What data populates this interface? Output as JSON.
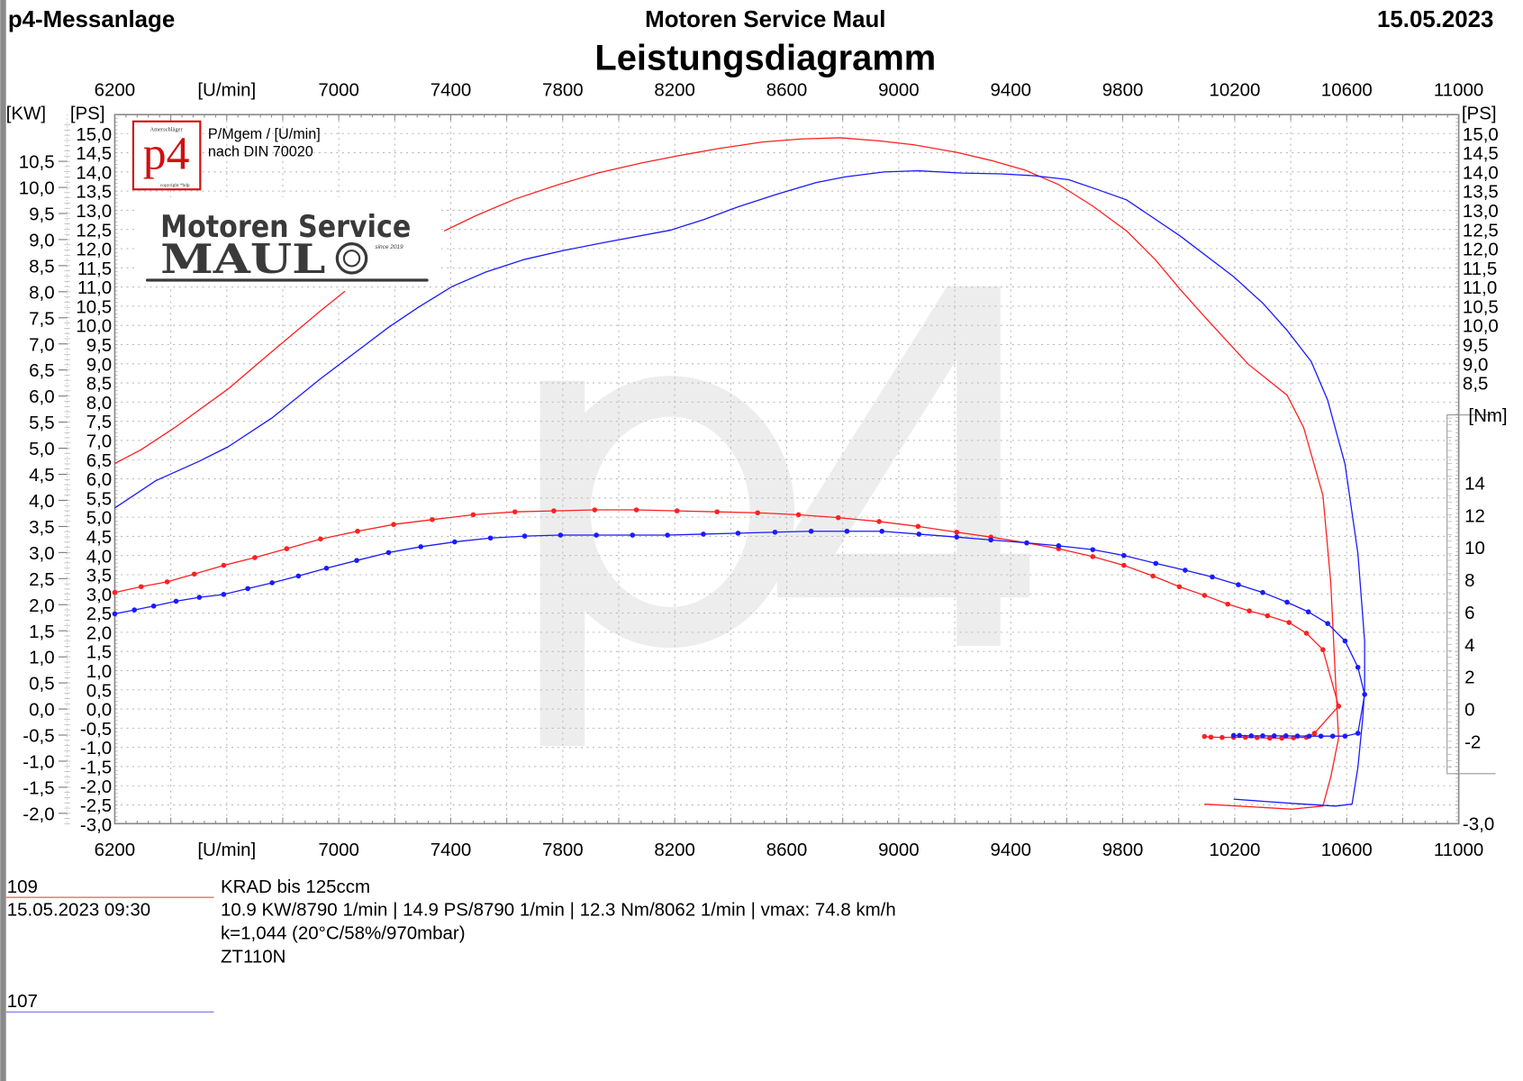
{
  "header": {
    "left": "p4-Messanlage",
    "center": "Motoren Service Maul",
    "date": "15.05.2023",
    "title": "Leistungsdiagramm"
  },
  "logo": {
    "p4_mark": "p4",
    "p4_top": "Amerschläger",
    "p4_bottom": "copyright *hdp",
    "desc_line1": "P/Mgem / [U/min]",
    "desc_line2": "nach DIN 70020",
    "company_line1": "Motoren Service",
    "company_line2": "MAUL",
    "since": "since 2019",
    "watermark": "p4"
  },
  "chart_data": {
    "type": "line",
    "title": "Leistungsdiagramm",
    "xlabel": "[U/min]",
    "y_left_outer_label": "[KW]",
    "y_left_label": "[PS]",
    "y_right_label": "[PS]",
    "y_right_torque_label": "[Nm]",
    "xlim": [
      6200,
      11000
    ],
    "ylim_ps": [
      -3.0,
      15.5
    ],
    "ylim_kw": [
      -2.2,
      11.4
    ],
    "ylim_nm_axis": [
      -4,
      18
    ],
    "grid": true,
    "x_ticks": [
      "6200",
      "[U/min]",
      "7000",
      "7400",
      "7800",
      "8200",
      "8600",
      "9000",
      "9400",
      "9800",
      "10200",
      "10600",
      "11000"
    ],
    "x_tick_values": [
      6200,
      6600,
      7000,
      7400,
      7800,
      8200,
      8600,
      9000,
      9400,
      9800,
      10200,
      10600,
      11000
    ],
    "kw_ticks": [
      "10,5",
      "10,0",
      "9,5",
      "9,0",
      "8,5",
      "8,0",
      "7,5",
      "7,0",
      "6,5",
      "6,0",
      "5,5",
      "5,0",
      "4,5",
      "4,0",
      "3,5",
      "3,0",
      "2,5",
      "2,0",
      "1,5",
      "1,0",
      "0,5",
      "0,0",
      "-0,5",
      "-1,0",
      "-1,5",
      "-2,0"
    ],
    "ps_ticks": [
      "15,0",
      "14,5",
      "14,0",
      "13,5",
      "13,0",
      "12,5",
      "12,0",
      "11,5",
      "11,0",
      "10,5",
      "10,0",
      "9,5",
      "9,0",
      "8,5",
      "8,0",
      "7,5",
      "7,0",
      "6,5",
      "6,0",
      "5,5",
      "5,0",
      "4,5",
      "4,0",
      "3,5",
      "3,0",
      "2,5",
      "2,0",
      "1,5",
      "1,0",
      "0,5",
      "0,0",
      "-0,5",
      "-1,0",
      "-1,5",
      "-2,0",
      "-2,5",
      "-3,0"
    ],
    "ps_right_ticks": [
      "15,0",
      "14,5",
      "14,0",
      "13,5",
      "13,0",
      "12,5",
      "12,0",
      "11,5",
      "11,0",
      "10,5",
      "10,0",
      "9,5",
      "9,0",
      "8,5"
    ],
    "ps_right_bottom_tick": "-3,0",
    "nm_ticks": [
      "14",
      "12",
      "10",
      "8",
      "6",
      "4",
      "2",
      "0",
      "-2"
    ],
    "runs": [
      {
        "id": "109",
        "color": "#ff2020",
        "legend_color": "#f08080",
        "power_ps": [
          [
            6200,
            6.4
          ],
          [
            6294,
            6.76
          ],
          [
            6415,
            7.34
          ],
          [
            6606,
            8.35
          ],
          [
            6762,
            9.32
          ],
          [
            6935,
            10.38
          ],
          [
            7022,
            10.89
          ],
          [
            7376,
            12.46
          ],
          [
            7490,
            12.86
          ],
          [
            7629,
            13.29
          ],
          [
            7785,
            13.67
          ],
          [
            7924,
            13.97
          ],
          [
            8080,
            14.23
          ],
          [
            8219,
            14.43
          ],
          [
            8357,
            14.61
          ],
          [
            8514,
            14.78
          ],
          [
            8652,
            14.86
          ],
          [
            8791,
            14.89
          ],
          [
            8930,
            14.81
          ],
          [
            9051,
            14.71
          ],
          [
            9207,
            14.51
          ],
          [
            9329,
            14.3
          ],
          [
            9450,
            14.05
          ],
          [
            9571,
            13.67
          ],
          [
            9693,
            13.11
          ],
          [
            9814,
            12.46
          ],
          [
            9918,
            11.7
          ],
          [
            10005,
            10.94
          ],
          [
            10092,
            10.23
          ],
          [
            10248,
            8.99
          ],
          [
            10387,
            8.18
          ],
          [
            10446,
            7.34
          ],
          [
            10515,
            5.57
          ],
          [
            10543,
            3.29
          ],
          [
            10560,
            0.76
          ],
          [
            10571,
            -0.76
          ],
          [
            10543,
            -1.77
          ],
          [
            10515,
            -2.53
          ],
          [
            10404,
            -2.61
          ],
          [
            10092,
            -2.48
          ]
        ],
        "power_gap_rpm": [
          7022,
          7376
        ],
        "torque_nm": [
          [
            6200,
            7.21
          ],
          [
            6294,
            7.57
          ],
          [
            6387,
            7.87
          ],
          [
            6484,
            8.35
          ],
          [
            6589,
            8.89
          ],
          [
            6700,
            9.37
          ],
          [
            6814,
            9.92
          ],
          [
            6935,
            10.52
          ],
          [
            7067,
            11.0
          ],
          [
            7196,
            11.42
          ],
          [
            7334,
            11.72
          ],
          [
            7480,
            12.02
          ],
          [
            7629,
            12.2
          ],
          [
            7768,
            12.26
          ],
          [
            7914,
            12.32
          ],
          [
            8063,
            12.32
          ],
          [
            8208,
            12.26
          ],
          [
            8351,
            12.2
          ],
          [
            8496,
            12.14
          ],
          [
            8642,
            12.02
          ],
          [
            8784,
            11.84
          ],
          [
            8930,
            11.6
          ],
          [
            9069,
            11.3
          ],
          [
            9207,
            10.94
          ],
          [
            9329,
            10.64
          ],
          [
            9457,
            10.28
          ],
          [
            9571,
            9.92
          ],
          [
            9693,
            9.43
          ],
          [
            9804,
            8.89
          ],
          [
            9908,
            8.23
          ],
          [
            10002,
            7.57
          ],
          [
            10092,
            7.03
          ],
          [
            10175,
            6.49
          ],
          [
            10252,
            6.07
          ],
          [
            10317,
            5.77
          ],
          [
            10394,
            5.35
          ],
          [
            10456,
            4.69
          ],
          [
            10515,
            3.67
          ],
          [
            10571,
            0.18
          ],
          [
            10485,
            -1.5
          ],
          [
            10456,
            -1.75
          ],
          [
            10410,
            -1.78
          ],
          [
            10368,
            -1.8
          ],
          [
            10325,
            -1.8
          ],
          [
            10280,
            -1.77
          ],
          [
            10238,
            -1.75
          ],
          [
            10196,
            -1.75
          ],
          [
            10155,
            -1.76
          ],
          [
            10115,
            -1.74
          ],
          [
            10092,
            -1.7
          ]
        ],
        "summary_line1": "KRAD bis   125ccm",
        "date_time": "15.05.2023  09:30",
        "summary_line2": "10.9 KW/8790 1/min  |  14.9 PS/8790 1/min  |  12.3 Nm/8062 1/min | vmax: 74.8 km/h",
        "summary_line3": "k=1,044 (20°C/58%/970mbar)",
        "summary_line4": "ZT110N"
      },
      {
        "id": "107",
        "color": "#1a1aff",
        "legend_color": "#9090f0",
        "power_ps": [
          [
            6200,
            5.24
          ],
          [
            6346,
            5.95
          ],
          [
            6502,
            6.46
          ],
          [
            6606,
            6.84
          ],
          [
            6762,
            7.59
          ],
          [
            6935,
            8.61
          ],
          [
            7178,
            9.95
          ],
          [
            7282,
            10.46
          ],
          [
            7404,
            11.01
          ],
          [
            7525,
            11.39
          ],
          [
            7664,
            11.72
          ],
          [
            7802,
            11.95
          ],
          [
            7941,
            12.15
          ],
          [
            8184,
            12.48
          ],
          [
            8305,
            12.76
          ],
          [
            8426,
            13.09
          ],
          [
            8566,
            13.42
          ],
          [
            8704,
            13.72
          ],
          [
            8808,
            13.87
          ],
          [
            8947,
            14.0
          ],
          [
            9069,
            14.03
          ],
          [
            9225,
            13.97
          ],
          [
            9363,
            13.95
          ],
          [
            9485,
            13.9
          ],
          [
            9606,
            13.8
          ],
          [
            9710,
            13.54
          ],
          [
            9814,
            13.27
          ],
          [
            10005,
            12.33
          ],
          [
            10196,
            11.27
          ],
          [
            10300,
            10.58
          ],
          [
            10387,
            9.87
          ],
          [
            10473,
            9.06
          ],
          [
            10532,
            8.05
          ],
          [
            10594,
            6.38
          ],
          [
            10640,
            4.05
          ],
          [
            10664,
            1.77
          ],
          [
            10664,
            0.51
          ],
          [
            10657,
            -0.25
          ],
          [
            10640,
            -1.52
          ],
          [
            10619,
            -2.48
          ],
          [
            10560,
            -2.53
          ],
          [
            10404,
            -2.46
          ],
          [
            10196,
            -2.35
          ]
        ],
        "torque_nm": [
          [
            6200,
            5.89
          ],
          [
            6270,
            6.13
          ],
          [
            6339,
            6.37
          ],
          [
            6419,
            6.67
          ],
          [
            6502,
            6.91
          ],
          [
            6589,
            7.09
          ],
          [
            6675,
            7.45
          ],
          [
            6762,
            7.81
          ],
          [
            6856,
            8.23
          ],
          [
            6956,
            8.71
          ],
          [
            7064,
            9.19
          ],
          [
            7178,
            9.68
          ],
          [
            7293,
            10.04
          ],
          [
            7414,
            10.34
          ],
          [
            7542,
            10.58
          ],
          [
            7664,
            10.7
          ],
          [
            7792,
            10.76
          ],
          [
            7920,
            10.76
          ],
          [
            8049,
            10.76
          ],
          [
            8174,
            10.76
          ],
          [
            8302,
            10.82
          ],
          [
            8426,
            10.88
          ],
          [
            8558,
            10.94
          ],
          [
            8687,
            11.0
          ],
          [
            8815,
            11.0
          ],
          [
            8940,
            11.0
          ],
          [
            9072,
            10.82
          ],
          [
            9207,
            10.64
          ],
          [
            9329,
            10.46
          ],
          [
            9457,
            10.28
          ],
          [
            9571,
            10.1
          ],
          [
            9693,
            9.86
          ],
          [
            9804,
            9.5
          ],
          [
            9918,
            9.01
          ],
          [
            10023,
            8.59
          ],
          [
            10120,
            8.17
          ],
          [
            10213,
            7.69
          ],
          [
            10300,
            7.21
          ],
          [
            10387,
            6.61
          ],
          [
            10463,
            6.01
          ],
          [
            10532,
            5.29
          ],
          [
            10594,
            4.21
          ],
          [
            10640,
            2.58
          ],
          [
            10664,
            0.9
          ],
          [
            10640,
            -1.5
          ],
          [
            10594,
            -1.68
          ],
          [
            10550,
            -1.68
          ],
          [
            10508,
            -1.68
          ],
          [
            10466,
            -1.68
          ],
          [
            10424,
            -1.67
          ],
          [
            10383,
            -1.66
          ],
          [
            10341,
            -1.66
          ],
          [
            10300,
            -1.66
          ],
          [
            10259,
            -1.66
          ],
          [
            10217,
            -1.64
          ],
          [
            10196,
            -1.64
          ]
        ]
      }
    ]
  }
}
